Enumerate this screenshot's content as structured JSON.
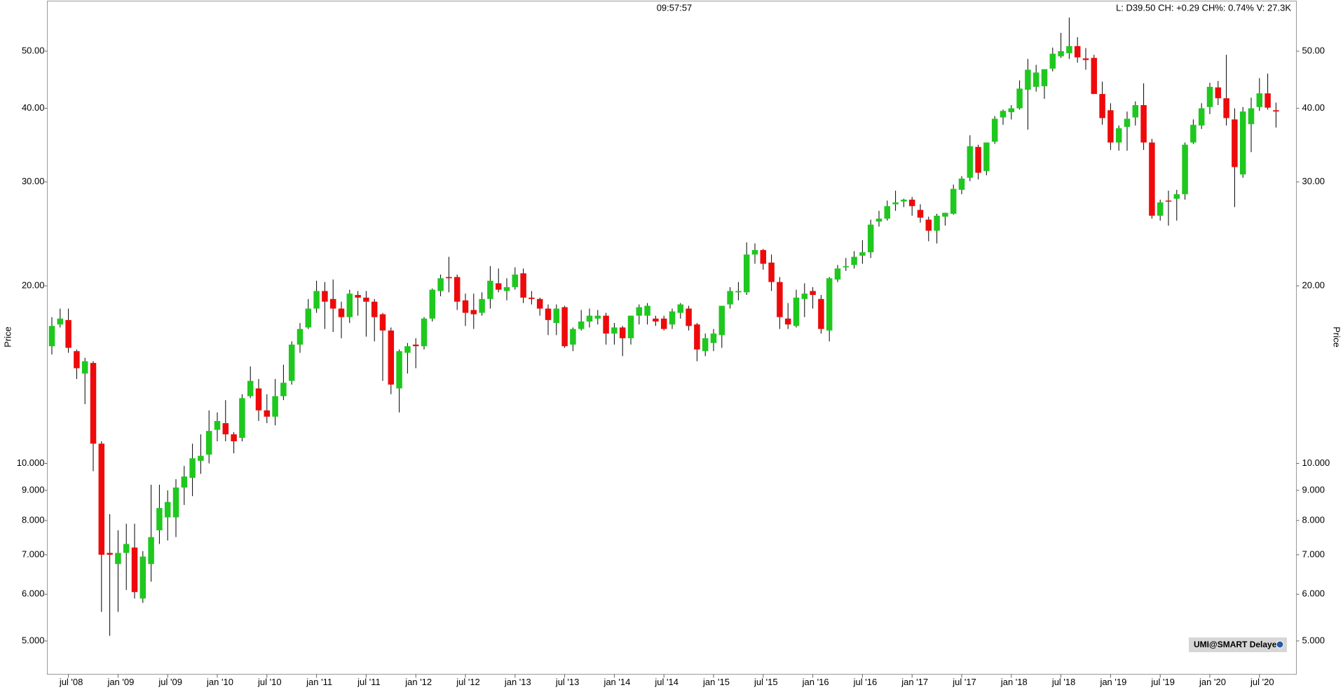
{
  "chart_data": {
    "type": "candlestick",
    "time": "09:57:57",
    "info": "L: D39.50 CH: +0.29 CH%: 0.74% V: 27.3K",
    "ylabel": "Price",
    "badge": "UMI@SMART Delayed",
    "log_y": true,
    "up_color": "#1ec81e",
    "down_color": "#ee0a0a",
    "ylim": [
      4.39,
      60.8
    ],
    "yticks": [
      {
        "value": 5,
        "label": "5.000"
      },
      {
        "value": 6,
        "label": "6.000"
      },
      {
        "value": 7,
        "label": "7.000"
      },
      {
        "value": 8,
        "label": "8.000"
      },
      {
        "value": 9,
        "label": "9.000"
      },
      {
        "value": 10,
        "label": "10.000"
      },
      {
        "value": 20,
        "label": "20.00"
      },
      {
        "value": 30,
        "label": "30.00"
      },
      {
        "value": 40,
        "label": "40.00"
      },
      {
        "value": 50,
        "label": "50.00"
      }
    ],
    "xticks": [
      {
        "value": "2008-07",
        "label": "jul '08"
      },
      {
        "value": "2009-01",
        "label": "jan '09"
      },
      {
        "value": "2009-07",
        "label": "jul '09"
      },
      {
        "value": "2010-01",
        "label": "jan '10"
      },
      {
        "value": "2010-07",
        "label": "jul '10"
      },
      {
        "value": "2011-01",
        "label": "jan '11"
      },
      {
        "value": "2011-07",
        "label": "jul '11"
      },
      {
        "value": "2012-01",
        "label": "jan '12"
      },
      {
        "value": "2012-07",
        "label": "jul '12"
      },
      {
        "value": "2013-01",
        "label": "jan '13"
      },
      {
        "value": "2013-07",
        "label": "jul '13"
      },
      {
        "value": "2014-01",
        "label": "jan '14"
      },
      {
        "value": "2014-07",
        "label": "jul '14"
      },
      {
        "value": "2015-01",
        "label": "jan '15"
      },
      {
        "value": "2015-07",
        "label": "jul '15"
      },
      {
        "value": "2016-01",
        "label": "jan '16"
      },
      {
        "value": "2016-07",
        "label": "jul '16"
      },
      {
        "value": "2017-01",
        "label": "jan '17"
      },
      {
        "value": "2017-07",
        "label": "jul '17"
      },
      {
        "value": "2018-01",
        "label": "jan '18"
      },
      {
        "value": "2018-07",
        "label": "jul '18"
      },
      {
        "value": "2019-01",
        "label": "jan '19"
      },
      {
        "value": "2019-07",
        "label": "jul '19"
      },
      {
        "value": "2020-01",
        "label": "jan '20"
      },
      {
        "value": "2020-07",
        "label": "jul '20"
      }
    ],
    "x": [
      "2008-05",
      "2008-06",
      "2008-07",
      "2008-08",
      "2008-09",
      "2008-10",
      "2008-11",
      "2008-12",
      "2009-01",
      "2009-02",
      "2009-03",
      "2009-04",
      "2009-05",
      "2009-06",
      "2009-07",
      "2009-08",
      "2009-09",
      "2009-10",
      "2009-11",
      "2009-12",
      "2010-01",
      "2010-02",
      "2010-03",
      "2010-04",
      "2010-05",
      "2010-06",
      "2010-07",
      "2010-08",
      "2010-09",
      "2010-10",
      "2010-11",
      "2010-12",
      "2011-01",
      "2011-02",
      "2011-03",
      "2011-04",
      "2011-05",
      "2011-06",
      "2011-07",
      "2011-08",
      "2011-09",
      "2011-10",
      "2011-11",
      "2011-12",
      "2012-01",
      "2012-02",
      "2012-03",
      "2012-04",
      "2012-05",
      "2012-06",
      "2012-07",
      "2012-08",
      "2012-09",
      "2012-10",
      "2012-11",
      "2012-12",
      "2013-01",
      "2013-02",
      "2013-03",
      "2013-04",
      "2013-05",
      "2013-06",
      "2013-07",
      "2013-08",
      "2013-09",
      "2013-10",
      "2013-11",
      "2013-12",
      "2014-01",
      "2014-02",
      "2014-03",
      "2014-04",
      "2014-05",
      "2014-06",
      "2014-07",
      "2014-08",
      "2014-09",
      "2014-10",
      "2014-11",
      "2014-12",
      "2015-01",
      "2015-02",
      "2015-03",
      "2015-04",
      "2015-05",
      "2015-06",
      "2015-07",
      "2015-08",
      "2015-09",
      "2015-10",
      "2015-11",
      "2015-12",
      "2016-01",
      "2016-02",
      "2016-03",
      "2016-04",
      "2016-05",
      "2016-06",
      "2016-07",
      "2016-08",
      "2016-09",
      "2016-10",
      "2016-11",
      "2016-12",
      "2017-01",
      "2017-02",
      "2017-03",
      "2017-04",
      "2017-05",
      "2017-06",
      "2017-07",
      "2017-08",
      "2017-09",
      "2017-10",
      "2017-11",
      "2017-12",
      "2018-01",
      "2018-02",
      "2018-03",
      "2018-04",
      "2018-05",
      "2018-06",
      "2018-07",
      "2018-08",
      "2018-09",
      "2018-10",
      "2018-11",
      "2018-12",
      "2019-01",
      "2019-02",
      "2019-03",
      "2019-04",
      "2019-05",
      "2019-06",
      "2019-07",
      "2019-08",
      "2019-09",
      "2019-10",
      "2019-11",
      "2019-12",
      "2020-01",
      "2020-02",
      "2020-03",
      "2020-04",
      "2020-05",
      "2020-06",
      "2020-07",
      "2020-08",
      "2020-09"
    ],
    "open": [
      15.8,
      17.2,
      17.5,
      15.5,
      14.2,
      14.8,
      10.8,
      7.05,
      6.75,
      7.05,
      7.2,
      5.9,
      6.75,
      7.7,
      8.1,
      8.1,
      9.1,
      9.45,
      10.1,
      10.35,
      11.4,
      11.7,
      11.2,
      11.05,
      13.0,
      13.4,
      12.3,
      12.0,
      13.0,
      13.8,
      15.9,
      17.0,
      18.3,
      19.6,
      19.0,
      18.3,
      17.7,
      19.3,
      19.1,
      18.8,
      17.9,
      16.8,
      13.4,
      15.4,
      15.9,
      15.8,
      17.6,
      19.6,
      20.7,
      20.7,
      18.9,
      18.2,
      18.0,
      19.0,
      20.2,
      19.6,
      19.9,
      21.0,
      19.1,
      19.0,
      18.3,
      17.3,
      18.4,
      15.9,
      16.9,
      17.4,
      17.6,
      17.8,
      16.6,
      17.0,
      16.3,
      17.8,
      17.8,
      17.6,
      17.6,
      17.2,
      18.0,
      18.3,
      17.2,
      15.5,
      16.0,
      16.5,
      18.6,
      19.5,
      19.5,
      22.6,
      23.0,
      21.9,
      20.3,
      17.6,
      17.1,
      19.0,
      19.6,
      19.0,
      16.8,
      20.5,
      21.5,
      21.7,
      22.5,
      22.8,
      25.7,
      26.0,
      27.5,
      27.8,
      28.0,
      26.9,
      25.9,
      24.8,
      26.2,
      26.5,
      29.1,
      30.5,
      34.4,
      31.3,
      35.1,
      38.6,
      39.4,
      40.0,
      43.0,
      43.5,
      43.6,
      46.7,
      49.0,
      49.6,
      51.0,
      48.6,
      48.7,
      42.3,
      39.7,
      35.0,
      37.2,
      38.6,
      40.5,
      35.0,
      26.3,
      27.9,
      28.1,
      28.6,
      35.0,
      37.4,
      40.2,
      43.4,
      41.6,
      38.3,
      30.9,
      37.6,
      40.2,
      42.4,
      39.7
    ],
    "high": [
      17.7,
      18.3,
      18.3,
      15.6,
      15.1,
      14.9,
      10.9,
      8.2,
      7.7,
      7.9,
      7.9,
      7.1,
      9.2,
      9.2,
      9.0,
      9.4,
      9.9,
      10.8,
      11.2,
      12.3,
      12.2,
      12.8,
      11.3,
      13.1,
      14.6,
      13.9,
      13.1,
      13.9,
      14.7,
      16.1,
      17.3,
      19.0,
      20.4,
      20.3,
      20.5,
      18.8,
      19.7,
      19.6,
      19.6,
      19.0,
      18.0,
      17.0,
      15.6,
      16.0,
      16.3,
      17.7,
      19.8,
      20.9,
      22.4,
      20.9,
      19.4,
      19.4,
      19.5,
      21.6,
      21.4,
      20.6,
      21.5,
      21.4,
      19.6,
      19.1,
      18.6,
      18.6,
      18.5,
      17.0,
      18.2,
      18.3,
      18.2,
      18.0,
      17.3,
      17.1,
      17.8,
      18.6,
      18.7,
      17.8,
      17.8,
      18.3,
      18.7,
      18.5,
      17.3,
      16.6,
      16.9,
      18.5,
      19.9,
      20.3,
      23.7,
      23.6,
      23.1,
      22.6,
      20.7,
      18.7,
      19.7,
      20.2,
      19.9,
      19.3,
      20.7,
      21.7,
      22.3,
      22.9,
      23.9,
      25.9,
      26.8,
      27.9,
      29.0,
      28.1,
      28.3,
      27.5,
      26.2,
      26.5,
      26.6,
      29.7,
      30.7,
      36.0,
      34.7,
      35.0,
      38.8,
      39.8,
      40.5,
      44.6,
      48.5,
      47.4,
      46.5,
      50.7,
      53.7,
      57.0,
      52.8,
      50.6,
      49.3,
      44.4,
      40.8,
      37.4,
      39.5,
      41.1,
      44.1,
      35.5,
      28.0,
      29.0,
      29.1,
      35.0,
      38.3,
      40.8,
      44.2,
      44.5,
      49.3,
      40.0,
      40.2,
      41.7,
      45.0,
      45.8,
      40.9
    ],
    "low": [
      15.3,
      17.0,
      15.4,
      13.9,
      12.6,
      9.7,
      5.6,
      5.1,
      5.6,
      6.1,
      5.9,
      5.8,
      6.3,
      7.3,
      7.4,
      7.5,
      8.5,
      8.8,
      9.6,
      10.0,
      10.9,
      10.9,
      10.4,
      10.9,
      12.9,
      11.8,
      11.7,
      11.6,
      12.8,
      13.6,
      15.4,
      16.9,
      18.0,
      16.9,
      16.7,
      16.3,
      17.3,
      17.8,
      16.4,
      16.1,
      13.8,
      13.1,
      12.2,
      14.2,
      14.5,
      15.6,
      17.4,
      19.2,
      19.5,
      18.2,
      17.1,
      16.9,
      17.8,
      18.3,
      19.5,
      18.9,
      19.7,
      18.7,
      18.6,
      17.8,
      16.5,
      16.5,
      15.7,
      15.5,
      16.8,
      17.0,
      17.2,
      15.9,
      15.9,
      15.2,
      15.9,
      17.2,
      17.2,
      17.1,
      16.8,
      16.9,
      17.6,
      16.8,
      14.9,
      15.2,
      15.5,
      15.7,
      18.3,
      18.9,
      19.3,
      21.8,
      21.3,
      19.6,
      16.9,
      16.9,
      17.0,
      17.7,
      18.3,
      16.6,
      16.1,
      20.3,
      21.2,
      21.4,
      21.8,
      22.3,
      25.2,
      25.8,
      26.8,
      27.2,
      26.3,
      25.6,
      23.8,
      23.6,
      25.3,
      26.4,
      28.6,
      30.1,
      30.3,
      30.8,
      34.8,
      37.5,
      38.3,
      39.8,
      36.8,
      42.7,
      41.5,
      46.2,
      48.7,
      48.5,
      47.8,
      46.5,
      42.3,
      37.5,
      34.0,
      33.9,
      33.9,
      37.4,
      34.0,
      26.0,
      25.8,
      25.3,
      25.8,
      28.0,
      34.8,
      36.9,
      39.1,
      40.5,
      37.4,
      27.2,
      30.5,
      33.7,
      39.6,
      39.8,
      37.1
    ],
    "close": [
      17.1,
      17.6,
      15.7,
      14.5,
      14.9,
      10.8,
      7.0,
      7.0,
      7.05,
      7.3,
      6.05,
      6.95,
      7.5,
      8.4,
      8.6,
      9.1,
      9.5,
      10.2,
      10.3,
      11.35,
      11.8,
      11.2,
      10.9,
      12.9,
      13.8,
      12.3,
      12.0,
      13.0,
      13.7,
      15.9,
      16.9,
      18.3,
      19.6,
      18.8,
      18.3,
      17.7,
      19.4,
      19.1,
      18.8,
      17.7,
      16.8,
      13.6,
      15.5,
      15.8,
      15.8,
      17.6,
      19.7,
      20.6,
      20.6,
      18.8,
      18.0,
      17.9,
      19.0,
      20.4,
      19.7,
      19.9,
      20.9,
      19.1,
      19.0,
      18.3,
      17.5,
      18.3,
      15.8,
      16.9,
      17.4,
      17.8,
      17.8,
      16.6,
      17.0,
      16.3,
      17.8,
      18.4,
      18.5,
      17.4,
      16.9,
      18.1,
      18.6,
      17.1,
      15.6,
      16.3,
      16.6,
      18.5,
      19.6,
      19.6,
      22.6,
      23.0,
      21.8,
      20.3,
      17.7,
      17.2,
      19.1,
      19.4,
      19.3,
      16.9,
      20.6,
      21.4,
      21.6,
      22.4,
      22.8,
      25.4,
      26.0,
      27.3,
      27.7,
      28.0,
      27.3,
      26.1,
      24.8,
      26.3,
      26.6,
      29.2,
      30.4,
      34.5,
      31.1,
      35.0,
      38.4,
      39.6,
      40.0,
      43.2,
      46.5,
      46.0,
      46.6,
      49.5,
      50.0,
      51.0,
      48.8,
      48.3,
      42.3,
      38.5,
      35.0,
      37.0,
      38.4,
      40.5,
      35.0,
      26.3,
      27.7,
      27.8,
      28.6,
      34.7,
      37.5,
      40.0,
      43.5,
      41.6,
      38.5,
      31.8,
      39.5,
      40.0,
      42.4,
      40.1,
      39.5
    ]
  }
}
